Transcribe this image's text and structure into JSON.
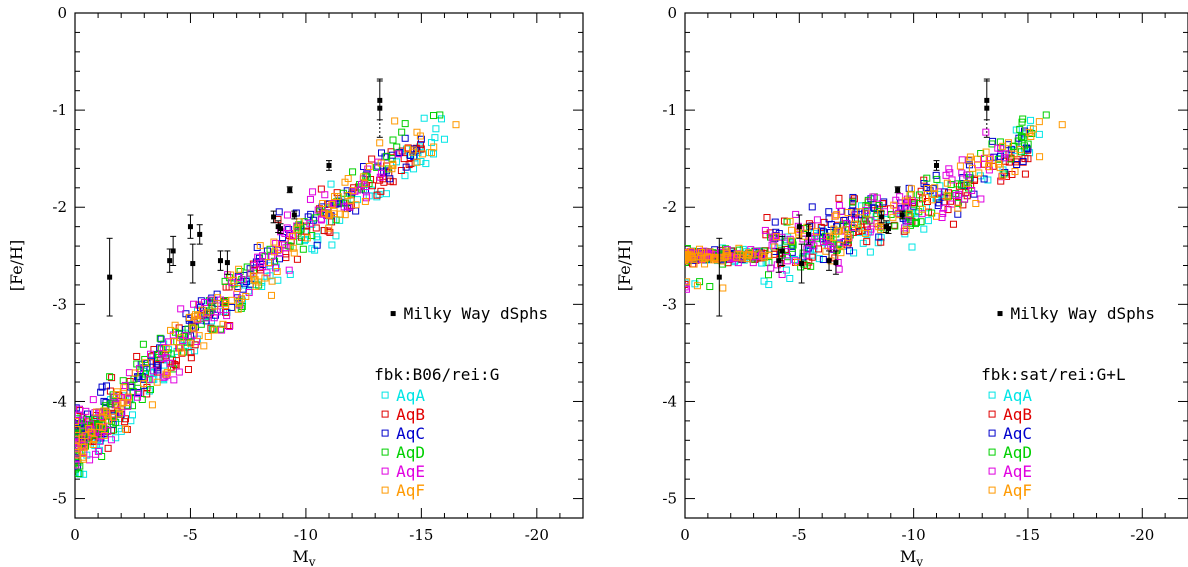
{
  "chart_data": [
    {
      "type": "scatter",
      "panel": "left",
      "xlabel": "Mv",
      "ylabel": "[Fe/H]",
      "xlim": [
        0,
        -22
      ],
      "ylim": [
        -5.2,
        0
      ],
      "x_ticks": [
        0,
        -5,
        -10,
        -15,
        -20
      ],
      "y_ticks": [
        0,
        -1,
        -2,
        -3,
        -4,
        -5
      ],
      "observed_label": "Milky Way dSphs",
      "legend_title": "fbk:B06/rei:G",
      "legend_position": "bottom-right",
      "observed": [
        {
          "x": -1.5,
          "y": -2.72,
          "err": 0.4
        },
        {
          "x": -4.1,
          "y": -2.55,
          "err": 0.12
        },
        {
          "x": -4.25,
          "y": -2.45,
          "err": 0.15
        },
        {
          "x": -5.0,
          "y": -2.2,
          "err": 0.12
        },
        {
          "x": -5.1,
          "y": -2.58,
          "err": 0.2
        },
        {
          "x": -5.4,
          "y": -2.28,
          "err": 0.1
        },
        {
          "x": -6.3,
          "y": -2.55,
          "err": 0.1
        },
        {
          "x": -6.6,
          "y": -2.57,
          "err": 0.12
        },
        {
          "x": -8.6,
          "y": -2.1,
          "err": 0.06
        },
        {
          "x": -8.8,
          "y": -2.2,
          "err": 0.06
        },
        {
          "x": -8.9,
          "y": -2.22,
          "err": 0.05
        },
        {
          "x": -9.3,
          "y": -1.82,
          "err": 0.03
        },
        {
          "x": -9.5,
          "y": -2.08,
          "err": 0.04
        },
        {
          "x": -11.0,
          "y": -1.57,
          "err": 0.05
        },
        {
          "x": -13.2,
          "y": -0.9,
          "err": 0.2
        },
        {
          "x": -13.2,
          "y": -0.98,
          "err": 0.3
        }
      ],
      "series": [
        {
          "name": "AqA",
          "color": "#00e5e5",
          "trend": [
            [
              0,
              -4.5
            ],
            [
              -3,
              -3.9
            ],
            [
              -5,
              -3.35
            ],
            [
              -7,
              -2.95
            ],
            [
              -10,
              -2.3
            ],
            [
              -13,
              -1.75
            ],
            [
              -16,
              -1.3
            ]
          ]
        },
        {
          "name": "AqB",
          "color": "#e00000",
          "trend": [
            [
              0,
              -4.45
            ],
            [
              -3,
              -3.8
            ],
            [
              -5,
              -3.3
            ],
            [
              -7,
              -2.9
            ],
            [
              -10,
              -2.25
            ],
            [
              -13,
              -1.7
            ],
            [
              -15,
              -1.4
            ]
          ]
        },
        {
          "name": "AqC",
          "color": "#0000cc",
          "trend": [
            [
              0,
              -4.4
            ],
            [
              -3,
              -3.7
            ],
            [
              -5,
              -3.2
            ],
            [
              -7,
              -2.8
            ],
            [
              -10,
              -2.15
            ],
            [
              -13,
              -1.6
            ],
            [
              -15,
              -1.3
            ]
          ]
        },
        {
          "name": "AqD",
          "color": "#00d000",
          "trend": [
            [
              0,
              -4.5
            ],
            [
              -3,
              -3.75
            ],
            [
              -5,
              -3.25
            ],
            [
              -7,
              -2.85
            ],
            [
              -10,
              -2.2
            ],
            [
              -13,
              -1.6
            ],
            [
              -15.8,
              -1.05
            ]
          ]
        },
        {
          "name": "AqE",
          "color": "#e000e0",
          "trend": [
            [
              0,
              -4.45
            ],
            [
              -3,
              -3.8
            ],
            [
              -5,
              -3.3
            ],
            [
              -7,
              -2.85
            ],
            [
              -10,
              -2.2
            ],
            [
              -13,
              -1.65
            ],
            [
              -14,
              -1.45
            ]
          ]
        },
        {
          "name": "AqF",
          "color": "#ff9900",
          "trend": [
            [
              0,
              -4.5
            ],
            [
              -3,
              -3.8
            ],
            [
              -5,
              -3.3
            ],
            [
              -7,
              -2.9
            ],
            [
              -10,
              -2.25
            ],
            [
              -13,
              -1.6
            ],
            [
              -16.5,
              -1.15
            ]
          ]
        }
      ]
    },
    {
      "type": "scatter",
      "panel": "right",
      "xlabel": "Mv",
      "ylabel": "[Fe/H]",
      "xlim": [
        0,
        -22
      ],
      "ylim": [
        -5.2,
        0
      ],
      "x_ticks": [
        0,
        -5,
        -10,
        -15,
        -20
      ],
      "y_ticks": [
        0,
        -1,
        -2,
        -3,
        -4,
        -5
      ],
      "observed_label": "Milky Way dSphs",
      "legend_title": "fbk:sat/rei:G+L",
      "legend_position": "bottom-right",
      "observed": [
        {
          "x": -1.5,
          "y": -2.72,
          "err": 0.4
        },
        {
          "x": -4.1,
          "y": -2.55,
          "err": 0.12
        },
        {
          "x": -4.25,
          "y": -2.45,
          "err": 0.15
        },
        {
          "x": -5.0,
          "y": -2.2,
          "err": 0.12
        },
        {
          "x": -5.1,
          "y": -2.58,
          "err": 0.2
        },
        {
          "x": -5.4,
          "y": -2.28,
          "err": 0.1
        },
        {
          "x": -6.3,
          "y": -2.55,
          "err": 0.1
        },
        {
          "x": -6.6,
          "y": -2.57,
          "err": 0.12
        },
        {
          "x": -8.6,
          "y": -2.1,
          "err": 0.06
        },
        {
          "x": -8.8,
          "y": -2.2,
          "err": 0.06
        },
        {
          "x": -8.9,
          "y": -2.22,
          "err": 0.05
        },
        {
          "x": -9.3,
          "y": -1.82,
          "err": 0.03
        },
        {
          "x": -9.5,
          "y": -2.08,
          "err": 0.04
        },
        {
          "x": -11.0,
          "y": -1.57,
          "err": 0.05
        },
        {
          "x": -13.2,
          "y": -0.9,
          "err": 0.2
        },
        {
          "x": -13.2,
          "y": -0.98,
          "err": 0.3
        }
      ],
      "series": [
        {
          "name": "AqA",
          "color": "#00e5e5",
          "trend": [
            [
              0,
              -2.5
            ],
            [
              -3,
              -2.5
            ],
            [
              -4,
              -2.48
            ],
            [
              -6,
              -2.35
            ],
            [
              -8,
              -2.2
            ],
            [
              -10,
              -2.05
            ],
            [
              -12,
              -1.85
            ],
            [
              -14,
              -1.55
            ],
            [
              -15.5,
              -1.25
            ]
          ]
        },
        {
          "name": "AqB",
          "color": "#e00000",
          "trend": [
            [
              0,
              -2.5
            ],
            [
              -3,
              -2.5
            ],
            [
              -4,
              -2.45
            ],
            [
              -6,
              -2.3
            ],
            [
              -8,
              -2.15
            ],
            [
              -10,
              -2.0
            ],
            [
              -12,
              -1.85
            ],
            [
              -14,
              -1.6
            ],
            [
              -15,
              -1.5
            ]
          ]
        },
        {
          "name": "AqC",
          "color": "#0000cc",
          "trend": [
            [
              0,
              -2.5
            ],
            [
              -3,
              -2.5
            ],
            [
              -4,
              -2.42
            ],
            [
              -6,
              -2.25
            ],
            [
              -8,
              -2.1
            ],
            [
              -10,
              -1.95
            ],
            [
              -12,
              -1.75
            ],
            [
              -14,
              -1.5
            ],
            [
              -15,
              -1.4
            ]
          ]
        },
        {
          "name": "AqD",
          "color": "#00d000",
          "trend": [
            [
              0,
              -2.5
            ],
            [
              -3,
              -2.5
            ],
            [
              -4,
              -2.45
            ],
            [
              -6,
              -2.3
            ],
            [
              -8,
              -2.15
            ],
            [
              -10,
              -2.0
            ],
            [
              -12,
              -1.8
            ],
            [
              -14,
              -1.45
            ],
            [
              -15.8,
              -1.05
            ]
          ]
        },
        {
          "name": "AqE",
          "color": "#e000e0",
          "trend": [
            [
              0,
              -2.5
            ],
            [
              -3,
              -2.5
            ],
            [
              -4,
              -2.45
            ],
            [
              -6,
              -2.3
            ],
            [
              -8,
              -2.15
            ],
            [
              -10,
              -2.0
            ],
            [
              -12,
              -1.8
            ],
            [
              -13.5,
              -1.5
            ],
            [
              -14,
              -1.45
            ]
          ]
        },
        {
          "name": "AqF",
          "color": "#ff9900",
          "trend": [
            [
              0,
              -2.5
            ],
            [
              -3,
              -2.5
            ],
            [
              -4,
              -2.45
            ],
            [
              -6,
              -2.3
            ],
            [
              -8,
              -2.15
            ],
            [
              -10,
              -2.0
            ],
            [
              -12,
              -1.75
            ],
            [
              -14,
              -1.45
            ],
            [
              -16.5,
              -1.15
            ]
          ]
        }
      ]
    }
  ]
}
